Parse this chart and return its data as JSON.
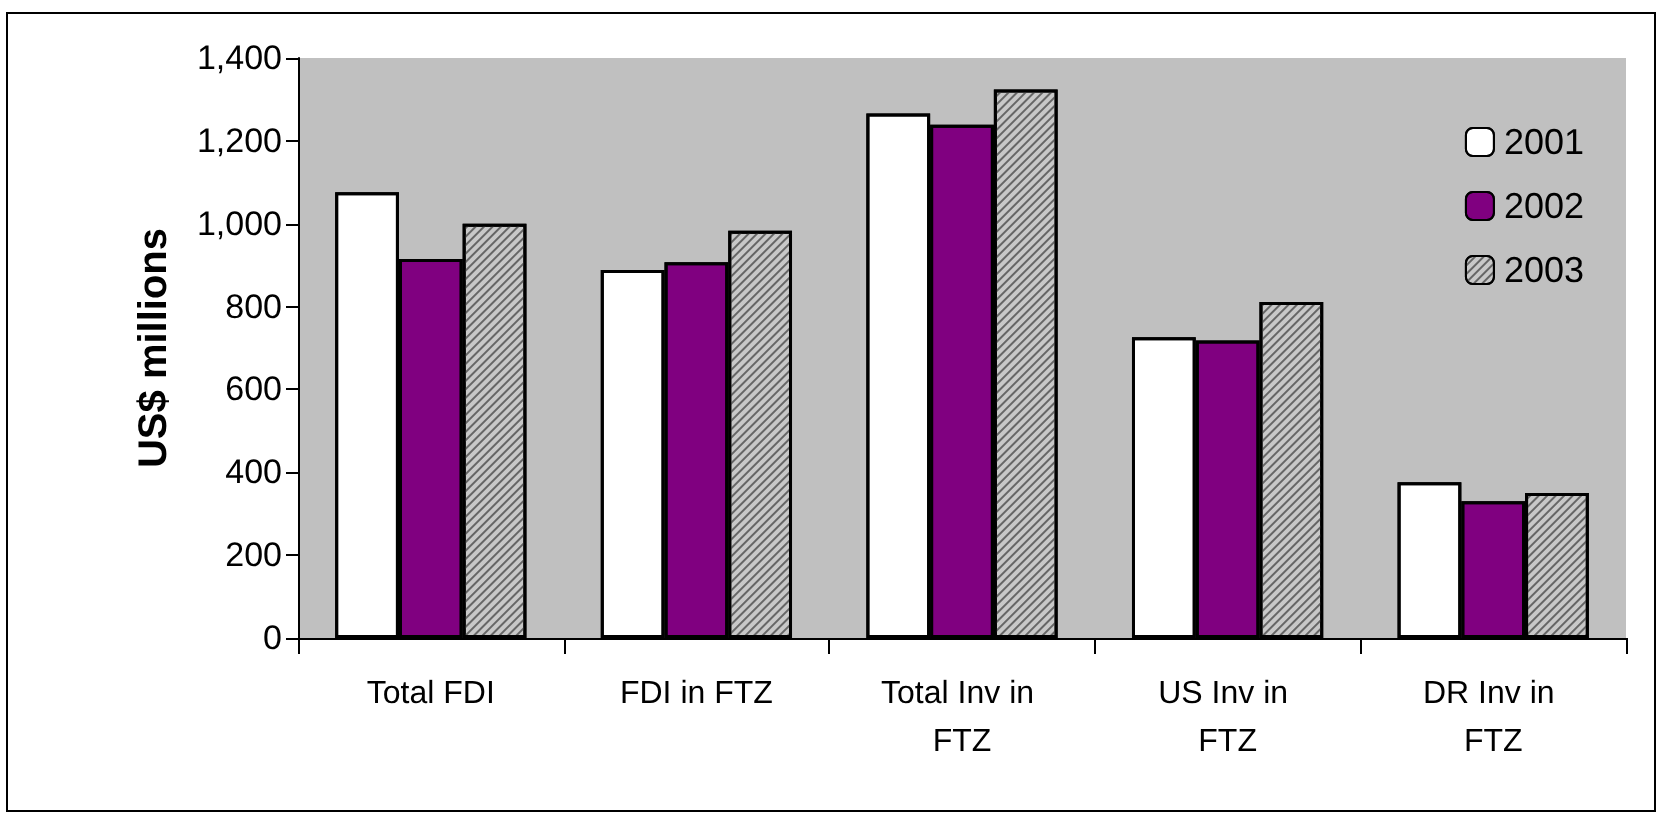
{
  "chart_data": {
    "type": "bar",
    "ylabel": "US$ millions",
    "categories": [
      "Total FDI",
      "FDI in FTZ",
      "Total Inv in FTZ",
      "US Inv in FTZ",
      "DR Inv in FTZ"
    ],
    "series": [
      {
        "name": "2001",
        "color": "#ffffff",
        "values": [
          1076,
          888,
          1266,
          726,
          376
        ]
      },
      {
        "name": "2002",
        "color": "#800080",
        "values": [
          915,
          907,
          1239,
          718,
          330
        ]
      },
      {
        "name": "2003",
        "color": "#c8c8c8",
        "values": [
          1000,
          983,
          1324,
          811,
          350
        ]
      }
    ],
    "ylim": [
      0,
      1400
    ],
    "yticks": [
      0,
      200,
      400,
      600,
      800,
      {
        "value": 1000,
        "label": "1,000"
      },
      {
        "value": 1200,
        "label": "1,200"
      },
      {
        "value": 1400,
        "label": "1,400"
      }
    ],
    "grid": false,
    "legend": "top right"
  }
}
